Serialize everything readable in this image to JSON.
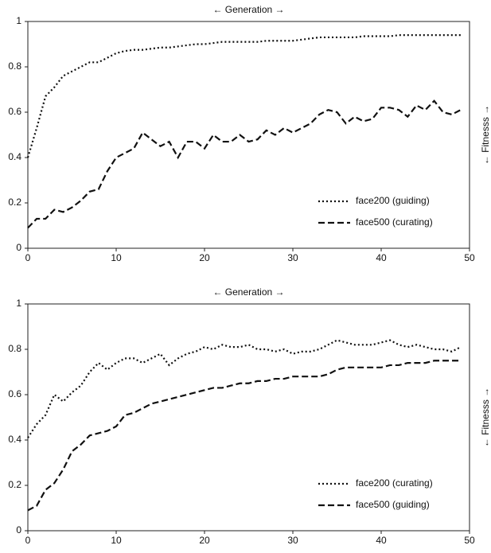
{
  "chart_data": [
    {
      "type": "line",
      "xlabel": "← Generation →",
      "ylabel": "← Fitnesss →",
      "x": [
        0,
        1,
        2,
        3,
        4,
        5,
        6,
        7,
        8,
        9,
        10,
        11,
        12,
        13,
        14,
        15,
        16,
        17,
        18,
        19,
        20,
        21,
        22,
        23,
        24,
        25,
        26,
        27,
        28,
        29,
        30,
        31,
        32,
        33,
        34,
        35,
        36,
        37,
        38,
        39,
        40,
        41,
        42,
        43,
        44,
        45,
        46,
        47,
        48,
        49
      ],
      "xlim": [
        0,
        50
      ],
      "ylim": [
        0,
        1
      ],
      "xticks": [
        0,
        10,
        20,
        30,
        40,
        50
      ],
      "yticks": [
        0,
        0.2,
        0.4,
        0.6,
        0.8,
        1
      ],
      "legend": "lower right",
      "series": [
        {
          "name": "face200 (guiding)",
          "color": "#111111",
          "style": "dotted",
          "values": [
            0.4,
            0.53,
            0.67,
            0.71,
            0.76,
            0.78,
            0.8,
            0.82,
            0.82,
            0.84,
            0.86,
            0.87,
            0.875,
            0.875,
            0.88,
            0.885,
            0.885,
            0.89,
            0.895,
            0.9,
            0.9,
            0.905,
            0.91,
            0.91,
            0.91,
            0.91,
            0.91,
            0.915,
            0.915,
            0.915,
            0.915,
            0.92,
            0.925,
            0.93,
            0.93,
            0.93,
            0.93,
            0.93,
            0.935,
            0.935,
            0.935,
            0.935,
            0.94,
            0.94,
            0.94,
            0.94,
            0.94,
            0.94,
            0.94,
            0.94
          ]
        },
        {
          "name": "face500 (curating)",
          "color": "#111111",
          "style": "dashed",
          "values": [
            0.09,
            0.13,
            0.13,
            0.17,
            0.16,
            0.18,
            0.21,
            0.25,
            0.26,
            0.34,
            0.4,
            0.42,
            0.44,
            0.51,
            0.48,
            0.45,
            0.47,
            0.4,
            0.47,
            0.47,
            0.44,
            0.5,
            0.47,
            0.47,
            0.5,
            0.47,
            0.48,
            0.52,
            0.5,
            0.53,
            0.51,
            0.53,
            0.55,
            0.59,
            0.61,
            0.6,
            0.55,
            0.58,
            0.56,
            0.57,
            0.62,
            0.62,
            0.61,
            0.58,
            0.63,
            0.61,
            0.65,
            0.6,
            0.59,
            0.61
          ]
        }
      ]
    },
    {
      "type": "line",
      "xlabel": "← Generation →",
      "ylabel": "← Fitnesss →",
      "x": [
        0,
        1,
        2,
        3,
        4,
        5,
        6,
        7,
        8,
        9,
        10,
        11,
        12,
        13,
        14,
        15,
        16,
        17,
        18,
        19,
        20,
        21,
        22,
        23,
        24,
        25,
        26,
        27,
        28,
        29,
        30,
        31,
        32,
        33,
        34,
        35,
        36,
        37,
        38,
        39,
        40,
        41,
        42,
        43,
        44,
        45,
        46,
        47,
        48,
        49
      ],
      "xlim": [
        0,
        50
      ],
      "ylim": [
        0,
        1
      ],
      "xticks": [
        0,
        10,
        20,
        30,
        40,
        50
      ],
      "yticks": [
        0,
        0.2,
        0.4,
        0.6,
        0.8,
        1
      ],
      "legend": "lower right",
      "series": [
        {
          "name": "face200 (curating)",
          "color": "#111111",
          "style": "dotted",
          "values": [
            0.41,
            0.47,
            0.51,
            0.6,
            0.57,
            0.61,
            0.64,
            0.7,
            0.74,
            0.71,
            0.74,
            0.76,
            0.76,
            0.74,
            0.76,
            0.78,
            0.73,
            0.76,
            0.78,
            0.79,
            0.81,
            0.8,
            0.82,
            0.81,
            0.81,
            0.82,
            0.8,
            0.8,
            0.79,
            0.8,
            0.78,
            0.79,
            0.79,
            0.8,
            0.82,
            0.84,
            0.83,
            0.82,
            0.82,
            0.82,
            0.83,
            0.84,
            0.82,
            0.81,
            0.82,
            0.81,
            0.8,
            0.8,
            0.79,
            0.81
          ]
        },
        {
          "name": "face500 (guiding)",
          "color": "#111111",
          "style": "dashed",
          "values": [
            0.09,
            0.11,
            0.18,
            0.21,
            0.27,
            0.35,
            0.38,
            0.42,
            0.43,
            0.44,
            0.46,
            0.51,
            0.52,
            0.54,
            0.56,
            0.57,
            0.58,
            0.59,
            0.6,
            0.61,
            0.62,
            0.63,
            0.63,
            0.64,
            0.65,
            0.65,
            0.66,
            0.66,
            0.67,
            0.67,
            0.68,
            0.68,
            0.68,
            0.68,
            0.69,
            0.71,
            0.72,
            0.72,
            0.72,
            0.72,
            0.72,
            0.73,
            0.73,
            0.74,
            0.74,
            0.74,
            0.75,
            0.75,
            0.75,
            0.75
          ]
        }
      ]
    }
  ]
}
